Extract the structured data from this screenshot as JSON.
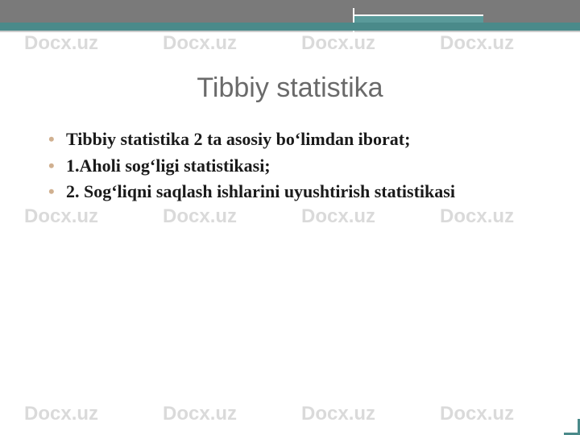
{
  "watermark": "Docx.uz",
  "title": "Tibbiy statistika",
  "bullets": [
    "Tibbiy statistika 2 ta asosiy bo‘limdan iborat;",
    "1.Aholi sog‘ligi statistikasi;",
    "2. Sog‘liqni saqlash ishlarini uyushtirish statistikasi"
  ],
  "colors": {
    "header_gray": "#7a7a7a",
    "header_teal": "#4a8a8a",
    "title_color": "#6a6a6a",
    "bullet_marker": "#d0b090",
    "text": "#1a1a1a",
    "watermark": "#888888"
  },
  "typography": {
    "title_fontsize": 34,
    "body_fontsize": 22,
    "watermark_fontsize": 24
  }
}
